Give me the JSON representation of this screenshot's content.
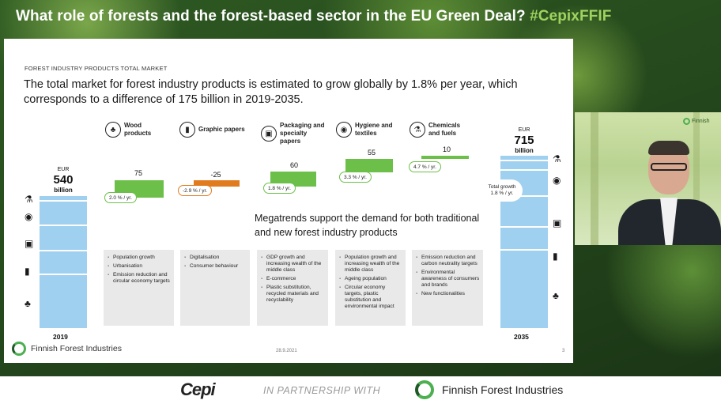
{
  "banner": {
    "title": "What role of forests and the forest-based sector in the EU Green Deal?",
    "hashtag": " #CepixFFIF"
  },
  "slide": {
    "kicker": "FOREST INDUSTRY PRODUCTS TOTAL MARKET",
    "headline": "The total market for forest industry products is estimated to grow globally by 1.8% per year, which corresponds to a difference of 175 billion in 2019-2035.",
    "start": {
      "currency": "EUR",
      "value": "540",
      "unit": "billion",
      "year": "2019"
    },
    "end": {
      "currency": "EUR",
      "value": "715",
      "unit": "billion",
      "year": "2035"
    },
    "total_growth": {
      "label": "Total growth",
      "rate": "1.8 % / yr."
    },
    "categories": [
      {
        "label": "Wood products",
        "icon": "tree-icon",
        "delta": "75",
        "rate": "2.0 % / yr."
      },
      {
        "label": "Graphic papers",
        "icon": "papers-icon",
        "delta": "-25",
        "rate": "-2.9 % / yr."
      },
      {
        "label": "Packaging and specialty papers",
        "icon": "package-icon",
        "delta": "60",
        "rate": "1.8 % / yr."
      },
      {
        "label": "Hygiene and textiles",
        "icon": "toilet-roll-icon",
        "delta": "55",
        "rate": "3.3 % / yr."
      },
      {
        "label": "Chemicals and fuels",
        "icon": "flask-icon",
        "delta": "10",
        "rate": "4.7 % / yr."
      }
    ],
    "megatrends": "Megatrends support the demand for both traditional and new forest industry products",
    "drivers": [
      [
        "Population growth",
        "Urbanisation",
        "Emission reduction and circular economy targets"
      ],
      [
        "Digitalisation",
        "Consumer behaviour"
      ],
      [
        "GDP growth and increasing wealth of the middle class",
        "E-commerce",
        "Plastic substitution, recycled materials and recyclability"
      ],
      [
        "Population growth and increasing wealth of the middle class",
        "Ageing population",
        "Circular economy targets, plastic substitution and environmental impact"
      ],
      [
        "Emission reduction and carbon neutrality targets",
        "Environmental awareness of consumers and brands",
        "New functionalities"
      ]
    ],
    "footer": {
      "org": "Finnish Forest Industries",
      "date": "28.9.2021",
      "page": "3"
    }
  },
  "video": {
    "logo_text": "Finnish"
  },
  "bottom": {
    "cepi": "Cepi",
    "partnership": "IN PARTNERSHIP WITH",
    "org": "Finnish Forest Industries"
  },
  "colors": {
    "positive": "#6cc04a",
    "negative": "#e07b1f",
    "bar": "#9fd0ef",
    "hashtag": "#9fd35f"
  }
}
